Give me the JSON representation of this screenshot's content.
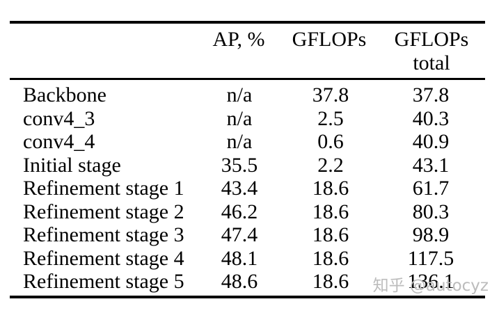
{
  "table": {
    "headers": {
      "ap": "AP, %",
      "gflops": "GFLOPs",
      "gflops_total_line1": "GFLOPs",
      "gflops_total_line2": "total"
    },
    "rows": [
      {
        "label": "Backbone",
        "ap": "n/a",
        "gflops": "37.8",
        "gflops_total": "37.8"
      },
      {
        "label": "conv4_3",
        "ap": "n/a",
        "gflops": "2.5",
        "gflops_total": "40.3"
      },
      {
        "label": "conv4_4",
        "ap": "n/a",
        "gflops": "0.6",
        "gflops_total": "40.9"
      },
      {
        "label": "Initial stage",
        "ap": "35.5",
        "gflops": "2.2",
        "gflops_total": "43.1"
      },
      {
        "label": "Refinement stage 1",
        "ap": "43.4",
        "gflops": "18.6",
        "gflops_total": "61.7"
      },
      {
        "label": "Refinement stage 2",
        "ap": "46.2",
        "gflops": "18.6",
        "gflops_total": "80.3"
      },
      {
        "label": "Refinement stage 3",
        "ap": "47.4",
        "gflops": "18.6",
        "gflops_total": "98.9"
      },
      {
        "label": "Refinement stage 4",
        "ap": "48.1",
        "gflops": "18.6",
        "gflops_total": "117.5"
      },
      {
        "label": "Refinement stage 5",
        "ap": "48.6",
        "gflops": "18.6",
        "gflops_total": "136.1"
      }
    ]
  },
  "watermark": {
    "text": "知乎 @autocyz",
    "color": "#bcbcbc"
  },
  "colors": {
    "background": "#ffffff",
    "text": "#000000",
    "rule": "#000000"
  }
}
